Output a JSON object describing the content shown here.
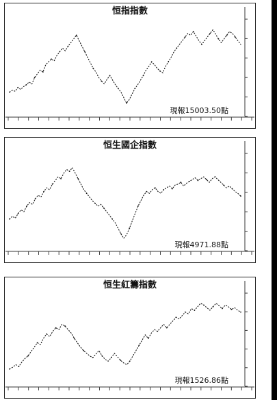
{
  "chart_data": [
    {
      "type": "line",
      "title": "恒指指數",
      "annotation": "現報15003.50點",
      "color": "#111111",
      "ylim": [
        0,
        100
      ],
      "values": [
        22,
        24,
        23,
        27,
        25,
        28,
        30,
        33,
        31,
        38,
        42,
        46,
        44,
        52,
        55,
        58,
        56,
        62,
        66,
        70,
        67,
        72,
        76,
        80,
        84,
        78,
        72,
        66,
        60,
        54,
        48,
        44,
        38,
        34,
        31,
        36,
        40,
        35,
        30,
        26,
        22,
        16,
        10,
        14,
        20,
        26,
        30,
        35,
        40,
        46,
        50,
        55,
        52,
        48,
        45,
        43,
        50,
        55,
        60,
        66,
        70,
        74,
        78,
        82,
        86,
        84,
        88,
        83,
        78,
        74,
        78,
        82,
        86,
        90,
        85,
        80,
        76,
        80,
        84,
        88,
        86,
        82,
        78,
        74
      ]
    },
    {
      "type": "line",
      "title": "恒生國企指數",
      "annotation": "現報4971.88點",
      "color": "#111111",
      "ylim": [
        0,
        100
      ],
      "values": [
        30,
        33,
        31,
        36,
        40,
        38,
        44,
        48,
        46,
        52,
        56,
        54,
        60,
        64,
        62,
        68,
        72,
        76,
        74,
        80,
        84,
        82,
        86,
        80,
        74,
        68,
        62,
        58,
        54,
        50,
        47,
        44,
        46,
        42,
        38,
        34,
        30,
        26,
        20,
        14,
        9,
        13,
        20,
        28,
        36,
        44,
        50,
        56,
        60,
        58,
        62,
        64,
        60,
        58,
        62,
        64,
        66,
        63,
        67,
        68,
        70,
        66,
        69,
        71,
        73,
        75,
        72,
        74,
        76,
        73,
        70,
        74,
        76,
        73,
        70,
        67,
        64,
        66,
        63,
        60,
        58,
        55
      ]
    },
    {
      "type": "line",
      "title": "恒生紅籌指數",
      "annotation": "現報1526.86點",
      "color": "#111111",
      "ylim": [
        0,
        100
      ],
      "values": [
        15,
        17,
        20,
        18,
        23,
        27,
        30,
        35,
        40,
        45,
        43,
        50,
        55,
        52,
        58,
        62,
        60,
        66,
        64,
        60,
        56,
        50,
        45,
        40,
        36,
        33,
        30,
        28,
        32,
        36,
        30,
        26,
        24,
        28,
        33,
        29,
        25,
        22,
        20,
        24,
        30,
        36,
        42,
        48,
        54,
        50,
        56,
        60,
        58,
        62,
        66,
        62,
        66,
        70,
        74,
        72,
        76,
        80,
        78,
        84,
        82,
        86,
        90,
        88,
        85,
        82,
        86,
        90,
        87,
        84,
        88,
        86,
        83,
        85,
        82,
        80
      ]
    }
  ]
}
